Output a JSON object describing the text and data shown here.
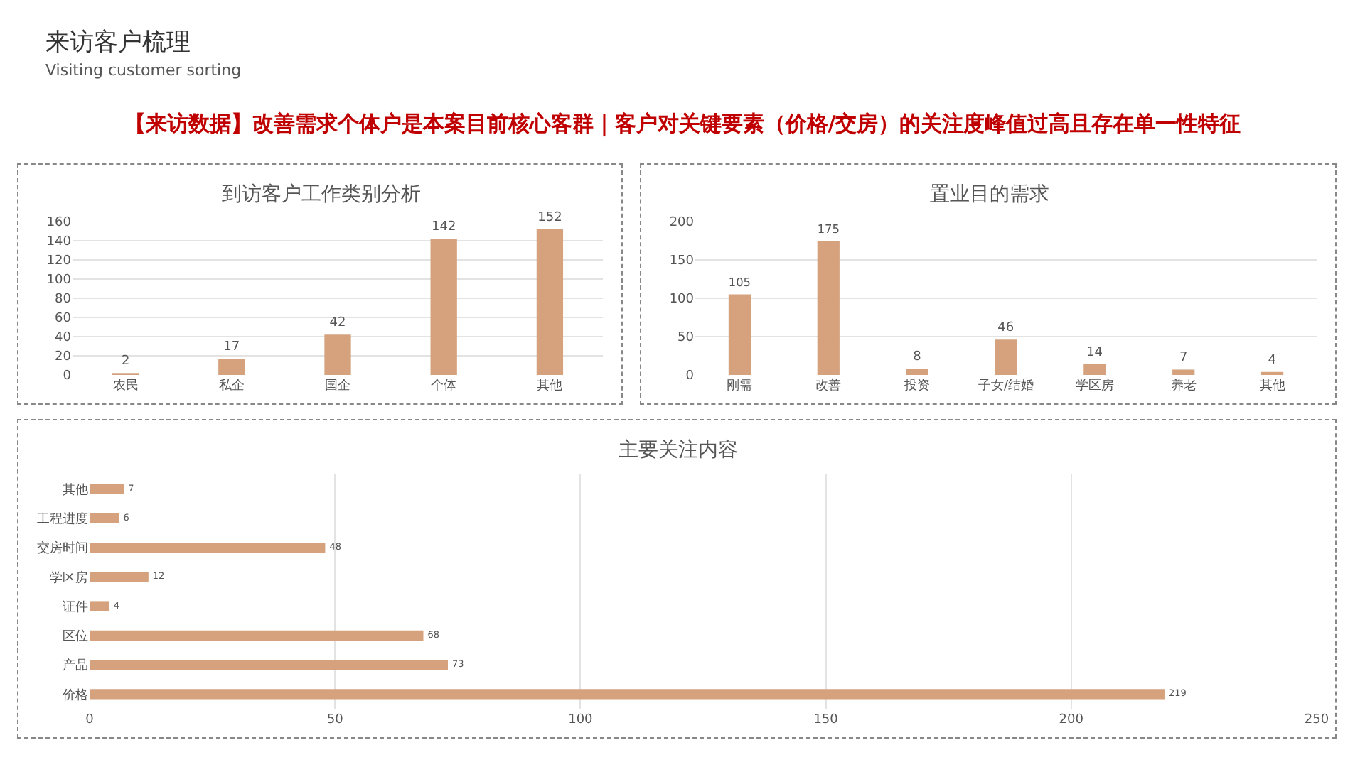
{
  "chart_data": [
    {
      "type": "other",
      "title": "来访客户梳理",
      "subtitle": "Visiting customer sorting",
      "annotations": [
        "【来访数据】改善需求个体户是本案目前核心客群｜客户对关键要素（价格/交房）的关注度峰值过高且存在单一性特征"
      ]
    },
    {
      "type": "bar",
      "title": "到访客户工作类别分析",
      "categories": [
        "农民",
        "私企",
        "国企",
        "个体",
        "其他"
      ],
      "values": [
        2,
        17,
        42,
        142,
        152
      ],
      "color": "#d5a27d",
      "ylim": [
        0,
        160
      ],
      "yticks": [
        0,
        20,
        40,
        60,
        80,
        100,
        120,
        140,
        160
      ],
      "grid": "y",
      "data_labels": true
    },
    {
      "type": "bar",
      "title": "置业目的需求",
      "categories": [
        "刚需",
        "改善",
        "投资",
        "子女/结婚",
        "学区房",
        "养老",
        "其他"
      ],
      "values": [
        105,
        175,
        8,
        46,
        14,
        7,
        4
      ],
      "color": "#d5a27d",
      "ylim": [
        0,
        200
      ],
      "yticks": [
        0,
        50,
        100,
        150,
        200
      ],
      "grid": "y",
      "data_labels": true
    },
    {
      "type": "bar",
      "orientation": "horizontal",
      "title": "主要关注内容",
      "categories": [
        "其他",
        "工程进度",
        "交房时间",
        "学区房",
        "证件",
        "区位",
        "产品",
        "价格"
      ],
      "values": [
        7,
        6,
        48,
        12,
        4,
        68,
        73,
        219
      ],
      "color": "#d5a27d",
      "xlim": [
        0,
        250
      ],
      "xticks": [
        0,
        50,
        100,
        150,
        200,
        250
      ],
      "grid": "x",
      "data_labels": true
    }
  ]
}
